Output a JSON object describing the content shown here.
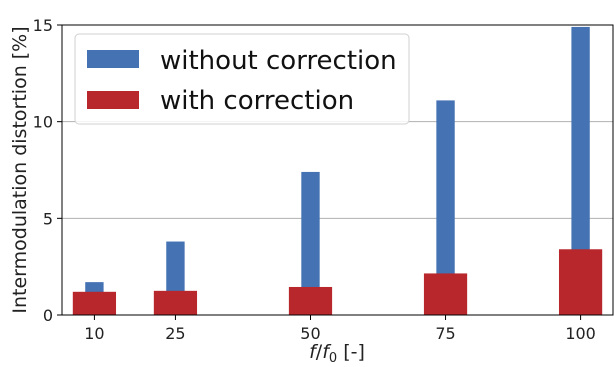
{
  "chart_data": {
    "type": "bar",
    "categories": [
      "10",
      "25",
      "50",
      "75",
      "100"
    ],
    "x": [
      10,
      25,
      50,
      75,
      100
    ],
    "series": [
      {
        "name": "without correction",
        "values": [
          1.7,
          3.8,
          7.4,
          11.1,
          14.9
        ],
        "color": "#4572b3"
      },
      {
        "name": "with correction",
        "values": [
          1.2,
          1.25,
          1.45,
          2.15,
          3.4
        ],
        "color": "#b8272b"
      }
    ],
    "xlabel_parts": [
      "f",
      "/",
      "f",
      "0",
      " [-]"
    ],
    "ylabel": "Intermodulation distortion [%]",
    "yticks": [
      "0",
      "5",
      "10",
      "15"
    ],
    "ylim": [
      0,
      15
    ],
    "xlim": [
      4,
      106
    ],
    "grid": "horizontal",
    "legend_placement": "top-left"
  }
}
